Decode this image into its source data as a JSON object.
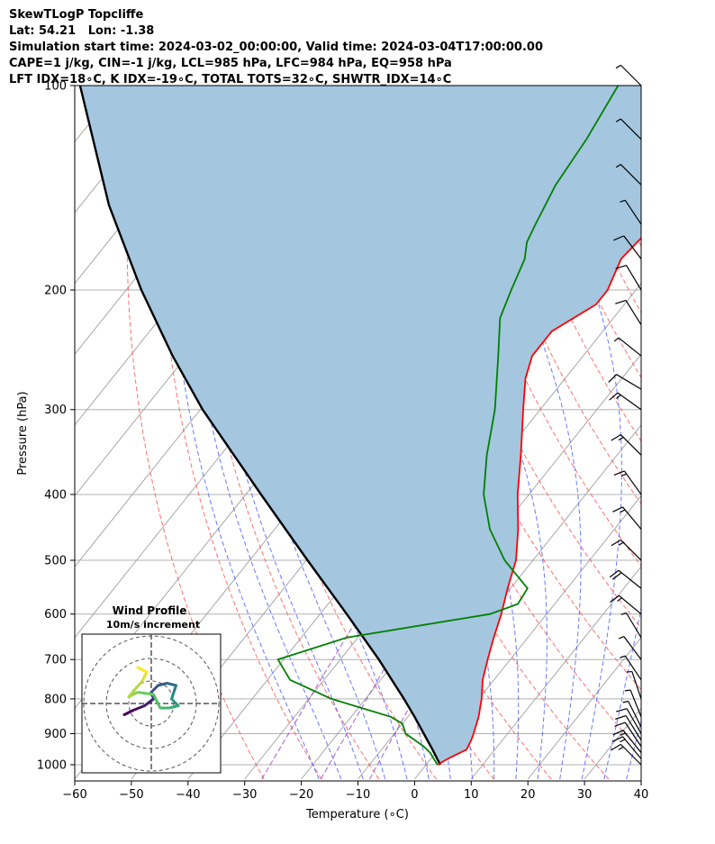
{
  "header": {
    "line1": "SkewTLogP Topcliffe",
    "line2": "Lat: 54.21   Lon: -1.38",
    "line3": "Simulation start time: 2024-03-02_00:00:00, Valid time: 2024-03-04T17:00:00.00",
    "line4": "CAPE=1 j/kg, CIN=-1 j/kg, LCL=985 hPa, LFC=984 hPa, EQ=958 hPa",
    "line5": "LFT IDX=18∘C, K IDX=-19∘C, TOTAL TOTS=32∘C, SHWTR_IDX=14∘C"
  },
  "chart_data": {
    "type": "line",
    "xlabel": "Temperature (∘C)",
    "ylabel": "Pressure (hPa)",
    "xlim": [
      -60,
      40
    ],
    "ylim": [
      1050,
      100
    ],
    "y_scale": "log",
    "x_ticks": [
      "−60",
      "−50",
      "−40",
      "−30",
      "−20",
      "−10",
      "0",
      "10",
      "20",
      "30",
      "40"
    ],
    "y_ticks": [
      "1000",
      "900",
      "800",
      "700",
      "600",
      "500",
      "400",
      "300",
      "200",
      "100"
    ],
    "grid": true,
    "skew": true,
    "series": [
      {
        "role": "temperature",
        "color": "#ff0000",
        "p": [
          1000,
          980,
          950,
          920,
          900,
          850,
          800,
          750,
          700,
          650,
          600,
          550,
          500,
          450,
          400,
          350,
          300,
          270,
          250,
          230,
          210,
          200,
          180,
          160,
          140,
          120,
          110,
          100
        ],
        "t": [
          2,
          3,
          5,
          4.5,
          4,
          2.5,
          0.5,
          -2,
          -4,
          -6,
          -8,
          -10.5,
          -13,
          -17,
          -22,
          -27,
          -33,
          -37,
          -39,
          -39,
          -35,
          -35,
          -37,
          -36,
          -35,
          -34,
          -38,
          -40
        ]
      },
      {
        "role": "dewpoint",
        "color": "#008000",
        "p": [
          1000,
          960,
          940,
          900,
          870,
          850,
          800,
          750,
          700,
          650,
          600,
          580,
          550,
          500,
          450,
          400,
          350,
          300,
          250,
          220,
          200,
          180,
          170,
          160,
          140,
          120,
          100
        ],
        "t": [
          2,
          -1,
          -3,
          -8,
          -10,
          -13,
          -26,
          -36,
          -41,
          -32,
          -10,
          -6.5,
          -7,
          -15,
          -22,
          -28,
          -33,
          -38,
          -45,
          -50,
          -52,
          -54,
          -56,
          -57,
          -59,
          -60,
          -62
        ]
      },
      {
        "role": "parcel",
        "color": "#000000",
        "p": [
          1000,
          950,
          900,
          850,
          800,
          700,
          600,
          500,
          400,
          300,
          250,
          200,
          150,
          100
        ],
        "t": [
          2.5,
          -1,
          -4.8,
          -8.8,
          -13.2,
          -23.2,
          -35.3,
          -49.8,
          -67.3,
          -89.6,
          -102.5,
          -117.3,
          -135,
          -157
        ]
      }
    ],
    "wind_barbs": {
      "p": [
        1000,
        980,
        960,
        940,
        920,
        900,
        880,
        850,
        800,
        750,
        700,
        650,
        600,
        550,
        500,
        450,
        400,
        350,
        300,
        280,
        250,
        225,
        200,
        180,
        160,
        140,
        120,
        100
      ],
      "u": [
        -12,
        -10,
        -8,
        -6,
        -5,
        -4,
        -3,
        -2,
        -1,
        -2,
        -3,
        -3,
        -12,
        -15,
        -12,
        -10,
        -10,
        -12,
        -14,
        -10,
        -5,
        -5,
        -6,
        -6,
        -4,
        -4,
        -2,
        -2
      ],
      "v": [
        12,
        12,
        10,
        9,
        8,
        7,
        6,
        5,
        3,
        3,
        4,
        5,
        10,
        12,
        12,
        12,
        14,
        12,
        10,
        6,
        4,
        8,
        10,
        8,
        6,
        4,
        2,
        2
      ]
    },
    "hodograph": {
      "title": "Wind Profile",
      "subtitle": "10m/s increment",
      "u": [
        -1.2,
        -0.8,
        -0.3,
        0.1,
        0.0,
        0.3,
        0.7,
        1.1,
        1.0,
        0.9,
        1.2,
        0.8,
        0.4,
        0.1,
        -0.6,
        -1.0,
        -0.4,
        -0.2,
        -0.6
      ],
      "v": [
        -0.5,
        -0.3,
        -0.1,
        0.2,
        0.5,
        0.8,
        0.9,
        0.8,
        0.5,
        0.2,
        -0.1,
        -0.2,
        -0.2,
        0.4,
        0.5,
        0.3,
        1.0,
        1.4,
        1.6
      ]
    },
    "colors": {
      "temperature": "#ff0000",
      "dewpoint": "#008000",
      "parcel": "#000000",
      "cape_fill": "#a4c6df",
      "dry_adiabat": "#ff5555",
      "moist_adiabat": "#4455ff",
      "isotherm": "#aaaaaa",
      "mixing_ratio": "#9933cc"
    }
  }
}
